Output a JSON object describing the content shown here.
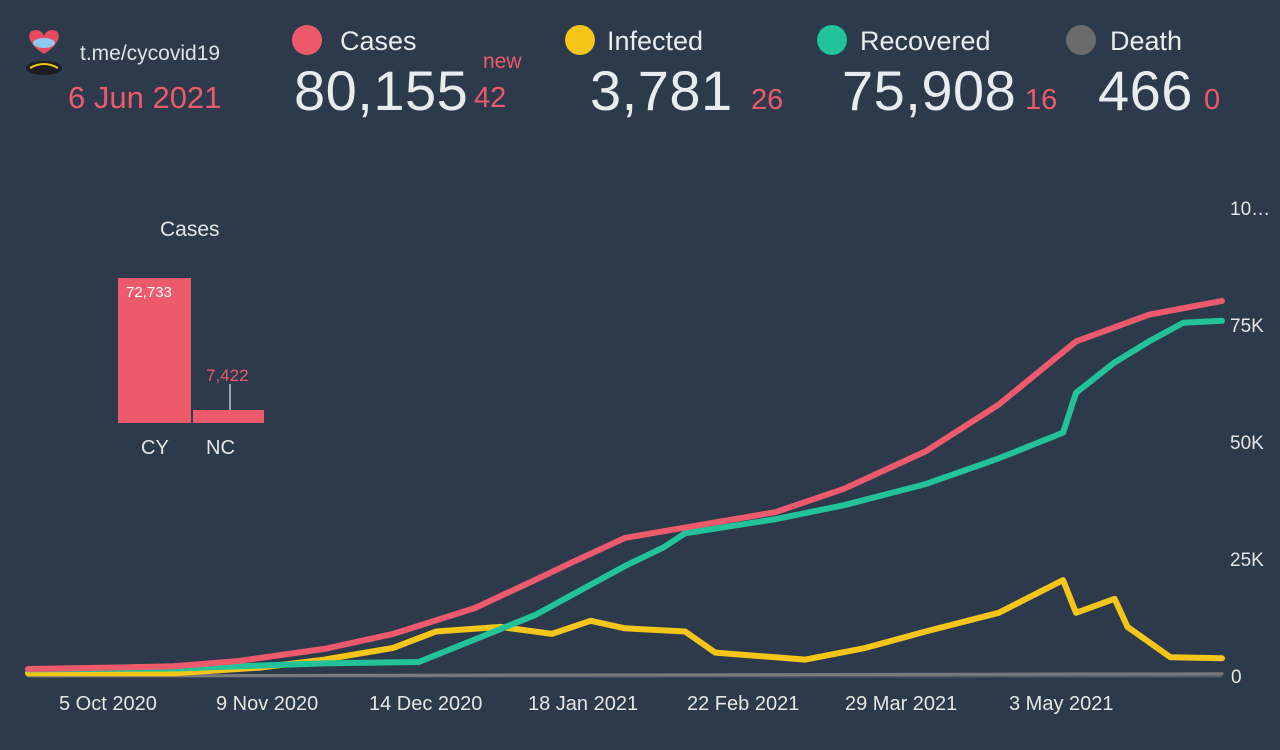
{
  "header": {
    "source": "t.me/cycovid19",
    "date": "6 Jun 2021",
    "stats": [
      {
        "label": "Cases",
        "value": "80,155",
        "delta": "42",
        "delta_tag": "new",
        "color": "#ec5a6c"
      },
      {
        "label": "Infected",
        "value": "3,781",
        "delta": "26",
        "color": "#f5c518"
      },
      {
        "label": "Recovered",
        "value": "75,908",
        "delta": "16",
        "color": "#22c39b"
      },
      {
        "label": "Death",
        "value": "466",
        "delta": "0",
        "color": "#6b6b6b"
      }
    ]
  },
  "mini_chart": {
    "title": "Cases",
    "bars": [
      {
        "category": "CY",
        "value": 72733,
        "label": "72,733"
      },
      {
        "category": "NC",
        "value": 7422,
        "label": "7,422"
      }
    ]
  },
  "chart_data": {
    "type": "line",
    "x_ticks": [
      "5 Oct 2020",
      "9 Nov 2020",
      "14 Dec 2020",
      "18 Jan 2021",
      "22 Feb 2021",
      "29 Mar 2021",
      "3 May 2021"
    ],
    "y_ticks": [
      "0",
      "25K",
      "50K",
      "75K",
      "10…"
    ],
    "ylim": [
      0,
      100000
    ],
    "series": [
      {
        "name": "Cases",
        "color": "#ec5a6c",
        "points": [
          [
            "2020-09-01",
            1500
          ],
          [
            "2020-09-20",
            1800
          ],
          [
            "2020-10-05",
            2100
          ],
          [
            "2020-10-20",
            3200
          ],
          [
            "2020-11-09",
            5800
          ],
          [
            "2020-11-25",
            9000
          ],
          [
            "2020-12-14",
            14500
          ],
          [
            "2020-12-28",
            20500
          ],
          [
            "2021-01-05",
            24000
          ],
          [
            "2021-01-18",
            29500
          ],
          [
            "2021-02-01",
            31700
          ],
          [
            "2021-02-22",
            35000
          ],
          [
            "2021-03-10",
            40000
          ],
          [
            "2021-03-29",
            48000
          ],
          [
            "2021-04-15",
            58000
          ],
          [
            "2021-05-03",
            71500
          ],
          [
            "2021-05-20",
            77200
          ],
          [
            "2021-06-06",
            80155
          ]
        ]
      },
      {
        "name": "Infected",
        "color": "#f5c518",
        "points": [
          [
            "2020-09-01",
            600
          ],
          [
            "2020-10-05",
            600
          ],
          [
            "2020-10-25",
            1800
          ],
          [
            "2020-11-09",
            3500
          ],
          [
            "2020-11-25",
            6000
          ],
          [
            "2020-12-05",
            9500
          ],
          [
            "2020-12-20",
            10500
          ],
          [
            "2021-01-01",
            9000
          ],
          [
            "2021-01-10",
            11800
          ],
          [
            "2021-01-18",
            10200
          ],
          [
            "2021-02-01",
            9500
          ],
          [
            "2021-02-08",
            5000
          ],
          [
            "2021-02-22",
            4000
          ],
          [
            "2021-03-01",
            3500
          ],
          [
            "2021-03-15",
            6000
          ],
          [
            "2021-03-29",
            9500
          ],
          [
            "2021-04-15",
            13500
          ],
          [
            "2021-04-30",
            20500
          ],
          [
            "2021-05-03",
            13500
          ],
          [
            "2021-05-12",
            16500
          ],
          [
            "2021-05-15",
            10500
          ],
          [
            "2021-05-25",
            4000
          ],
          [
            "2021-06-06",
            3781
          ]
        ]
      },
      {
        "name": "Recovered",
        "color": "#22c39b",
        "points": [
          [
            "2020-09-01",
            1400
          ],
          [
            "2020-10-05",
            1600
          ],
          [
            "2020-11-09",
            2700
          ],
          [
            "2020-12-01",
            3000
          ],
          [
            "2020-12-14",
            7800
          ],
          [
            "2020-12-28",
            13000
          ],
          [
            "2021-01-10",
            19500
          ],
          [
            "2021-01-18",
            23500
          ],
          [
            "2021-01-27",
            27500
          ],
          [
            "2021-02-01",
            30500
          ],
          [
            "2021-02-22",
            33500
          ],
          [
            "2021-03-10",
            36500
          ],
          [
            "2021-03-29",
            41000
          ],
          [
            "2021-04-15",
            46500
          ],
          [
            "2021-04-30",
            52000
          ],
          [
            "2021-05-03",
            60500
          ],
          [
            "2021-05-12",
            67000
          ],
          [
            "2021-05-20",
            71500
          ],
          [
            "2021-05-28",
            75500
          ],
          [
            "2021-06-06",
            75908
          ]
        ]
      },
      {
        "name": "Death",
        "color": "#7a7a7a",
        "points": [
          [
            "2020-09-01",
            20
          ],
          [
            "2021-06-06",
            466
          ]
        ]
      }
    ]
  }
}
